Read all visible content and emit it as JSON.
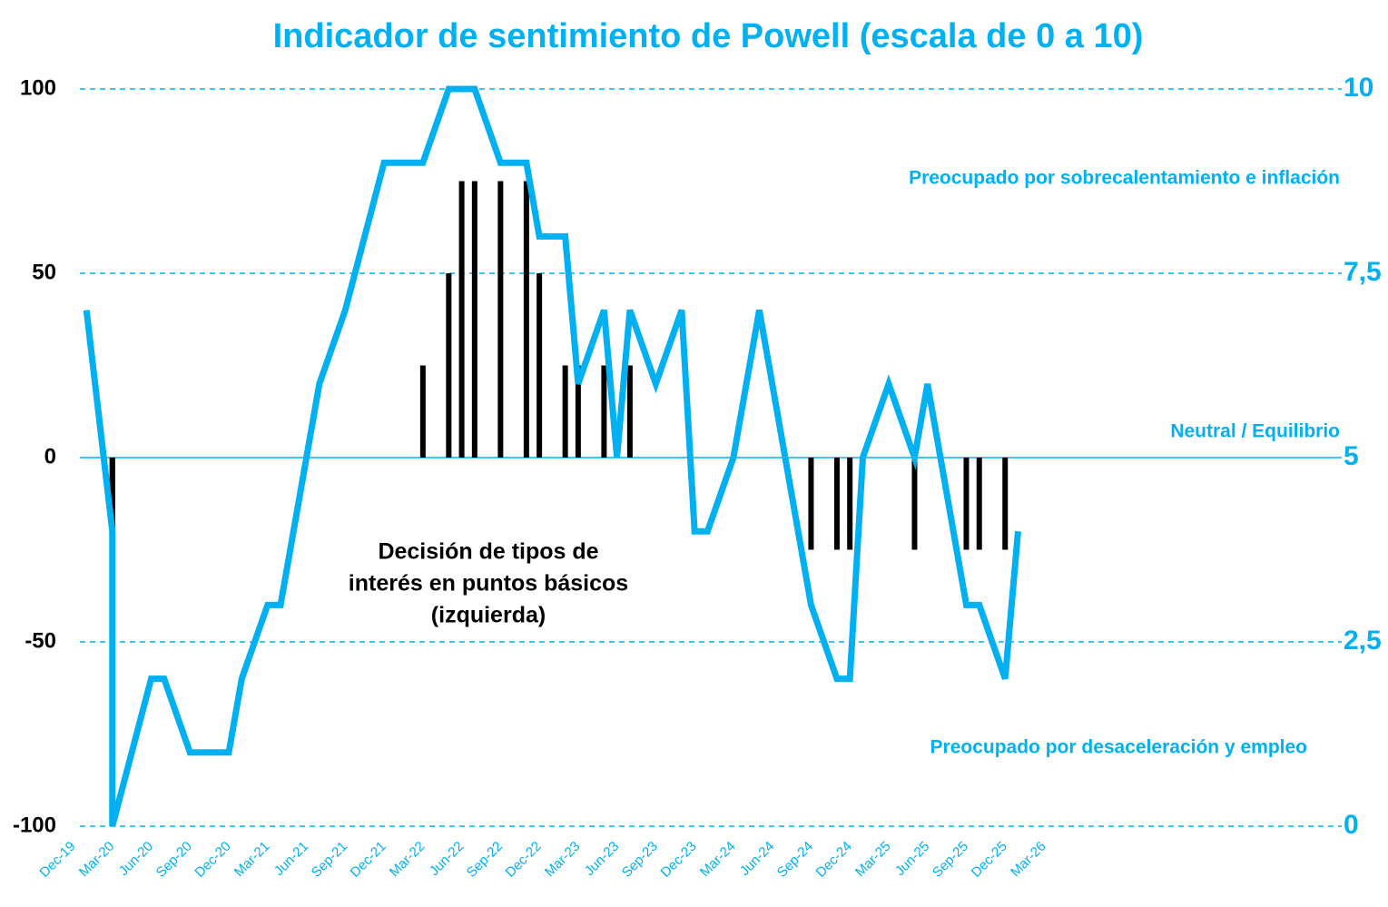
{
  "chart_data": {
    "type": "bar-line",
    "title": "Indicador de sentimiento de Powell (escala de 0 a 10)",
    "annotations": [
      "Preocupado por sobrecalentamiento e inflación",
      "Neutral / Equilibrio",
      "Preocupado por desaceleración y empleo"
    ],
    "bar_label": [
      "Decisión de tipos de",
      "interés en puntos básicos",
      "(izquierda)"
    ],
    "xlim": [
      "Dec-19",
      "Mar-26"
    ],
    "xticks": [
      "Dec-19",
      "Mar-20",
      "Jun-20",
      "Sep-20",
      "Dec-20",
      "Mar-21",
      "Jun-21",
      "Sep-21",
      "Dec-21",
      "Mar-22",
      "Jun-22",
      "Sep-22",
      "Dec-22",
      "Mar-23",
      "Jun-23",
      "Sep-23",
      "Dec-23",
      "Mar-24",
      "Jun-24",
      "Sep-24",
      "Dec-24",
      "Mar-25",
      "Jun-25",
      "Sep-25",
      "Dec-25",
      "Mar-26"
    ],
    "ylim": [
      -100,
      100
    ],
    "yticks": [
      -100,
      -50,
      0,
      50,
      100
    ],
    "y2lim": [
      0,
      10
    ],
    "y2ticks": [
      0,
      {
        "value": 2.5,
        "label": "2,5"
      },
      5,
      {
        "value": 7.5,
        "label": "7,5"
      },
      10
    ],
    "grid": true,
    "series": [
      {
        "type": "bar",
        "color": "#000000",
        "x": [
          "Mar-20",
          "Mar-20",
          "Mar-22",
          "May-22",
          "Jun-22",
          "Jul-22",
          "Sep-22",
          "Nov-22",
          "Dec-22",
          "Feb-23",
          "Mar-23",
          "May-23",
          "Jul-23",
          "Sep-24",
          "Nov-24",
          "Dec-24",
          "May-25",
          "Sep-25",
          "Oct-25",
          "Dec-25"
        ],
        "values": [
          -50,
          -100,
          25,
          50,
          75,
          75,
          75,
          75,
          50,
          25,
          25,
          25,
          25,
          -25,
          -25,
          -25,
          -25,
          -25,
          -25,
          -25
        ]
      },
      {
        "type": "line",
        "color": "#00b0f0",
        "axis": "y2",
        "x": [
          "Jan-20",
          "Mar-20",
          "Mar-20",
          "Jun-20",
          "Jul-20",
          "Sep-20",
          "Dec-20",
          "Jan-21",
          "Mar-21",
          "Apr-21",
          "Jun-21",
          "Jul-21",
          "Sep-21",
          "Dec-21",
          "Mar-22",
          "May-22",
          "Jul-22",
          "Sep-22",
          "Nov-22",
          "Dec-22",
          "Feb-23",
          "Mar-23",
          "May-23",
          "Jun-23",
          "Jul-23",
          "Sep-23",
          "Nov-23",
          "Dec-23",
          "Jan-24",
          "Mar-24",
          "May-24",
          "Jun-24",
          "Jul-24",
          "Sep-24",
          "Nov-24",
          "Dec-24",
          "Jan-25",
          "Mar-25",
          "May-25",
          "Jun-25",
          "Jul-25",
          "Sep-25",
          "Oct-25",
          "Dec-25",
          "Jan-26"
        ],
        "values": [
          7,
          4,
          0,
          2,
          2,
          1,
          1,
          2,
          3,
          3,
          5,
          6,
          7,
          9,
          9,
          10,
          10,
          9,
          9,
          8,
          8,
          6,
          7,
          5,
          7,
          6,
          7,
          4,
          4,
          5,
          7,
          6,
          5,
          3,
          2,
          2,
          5,
          6,
          5,
          6,
          5,
          3,
          3,
          2,
          4
        ]
      }
    ]
  }
}
